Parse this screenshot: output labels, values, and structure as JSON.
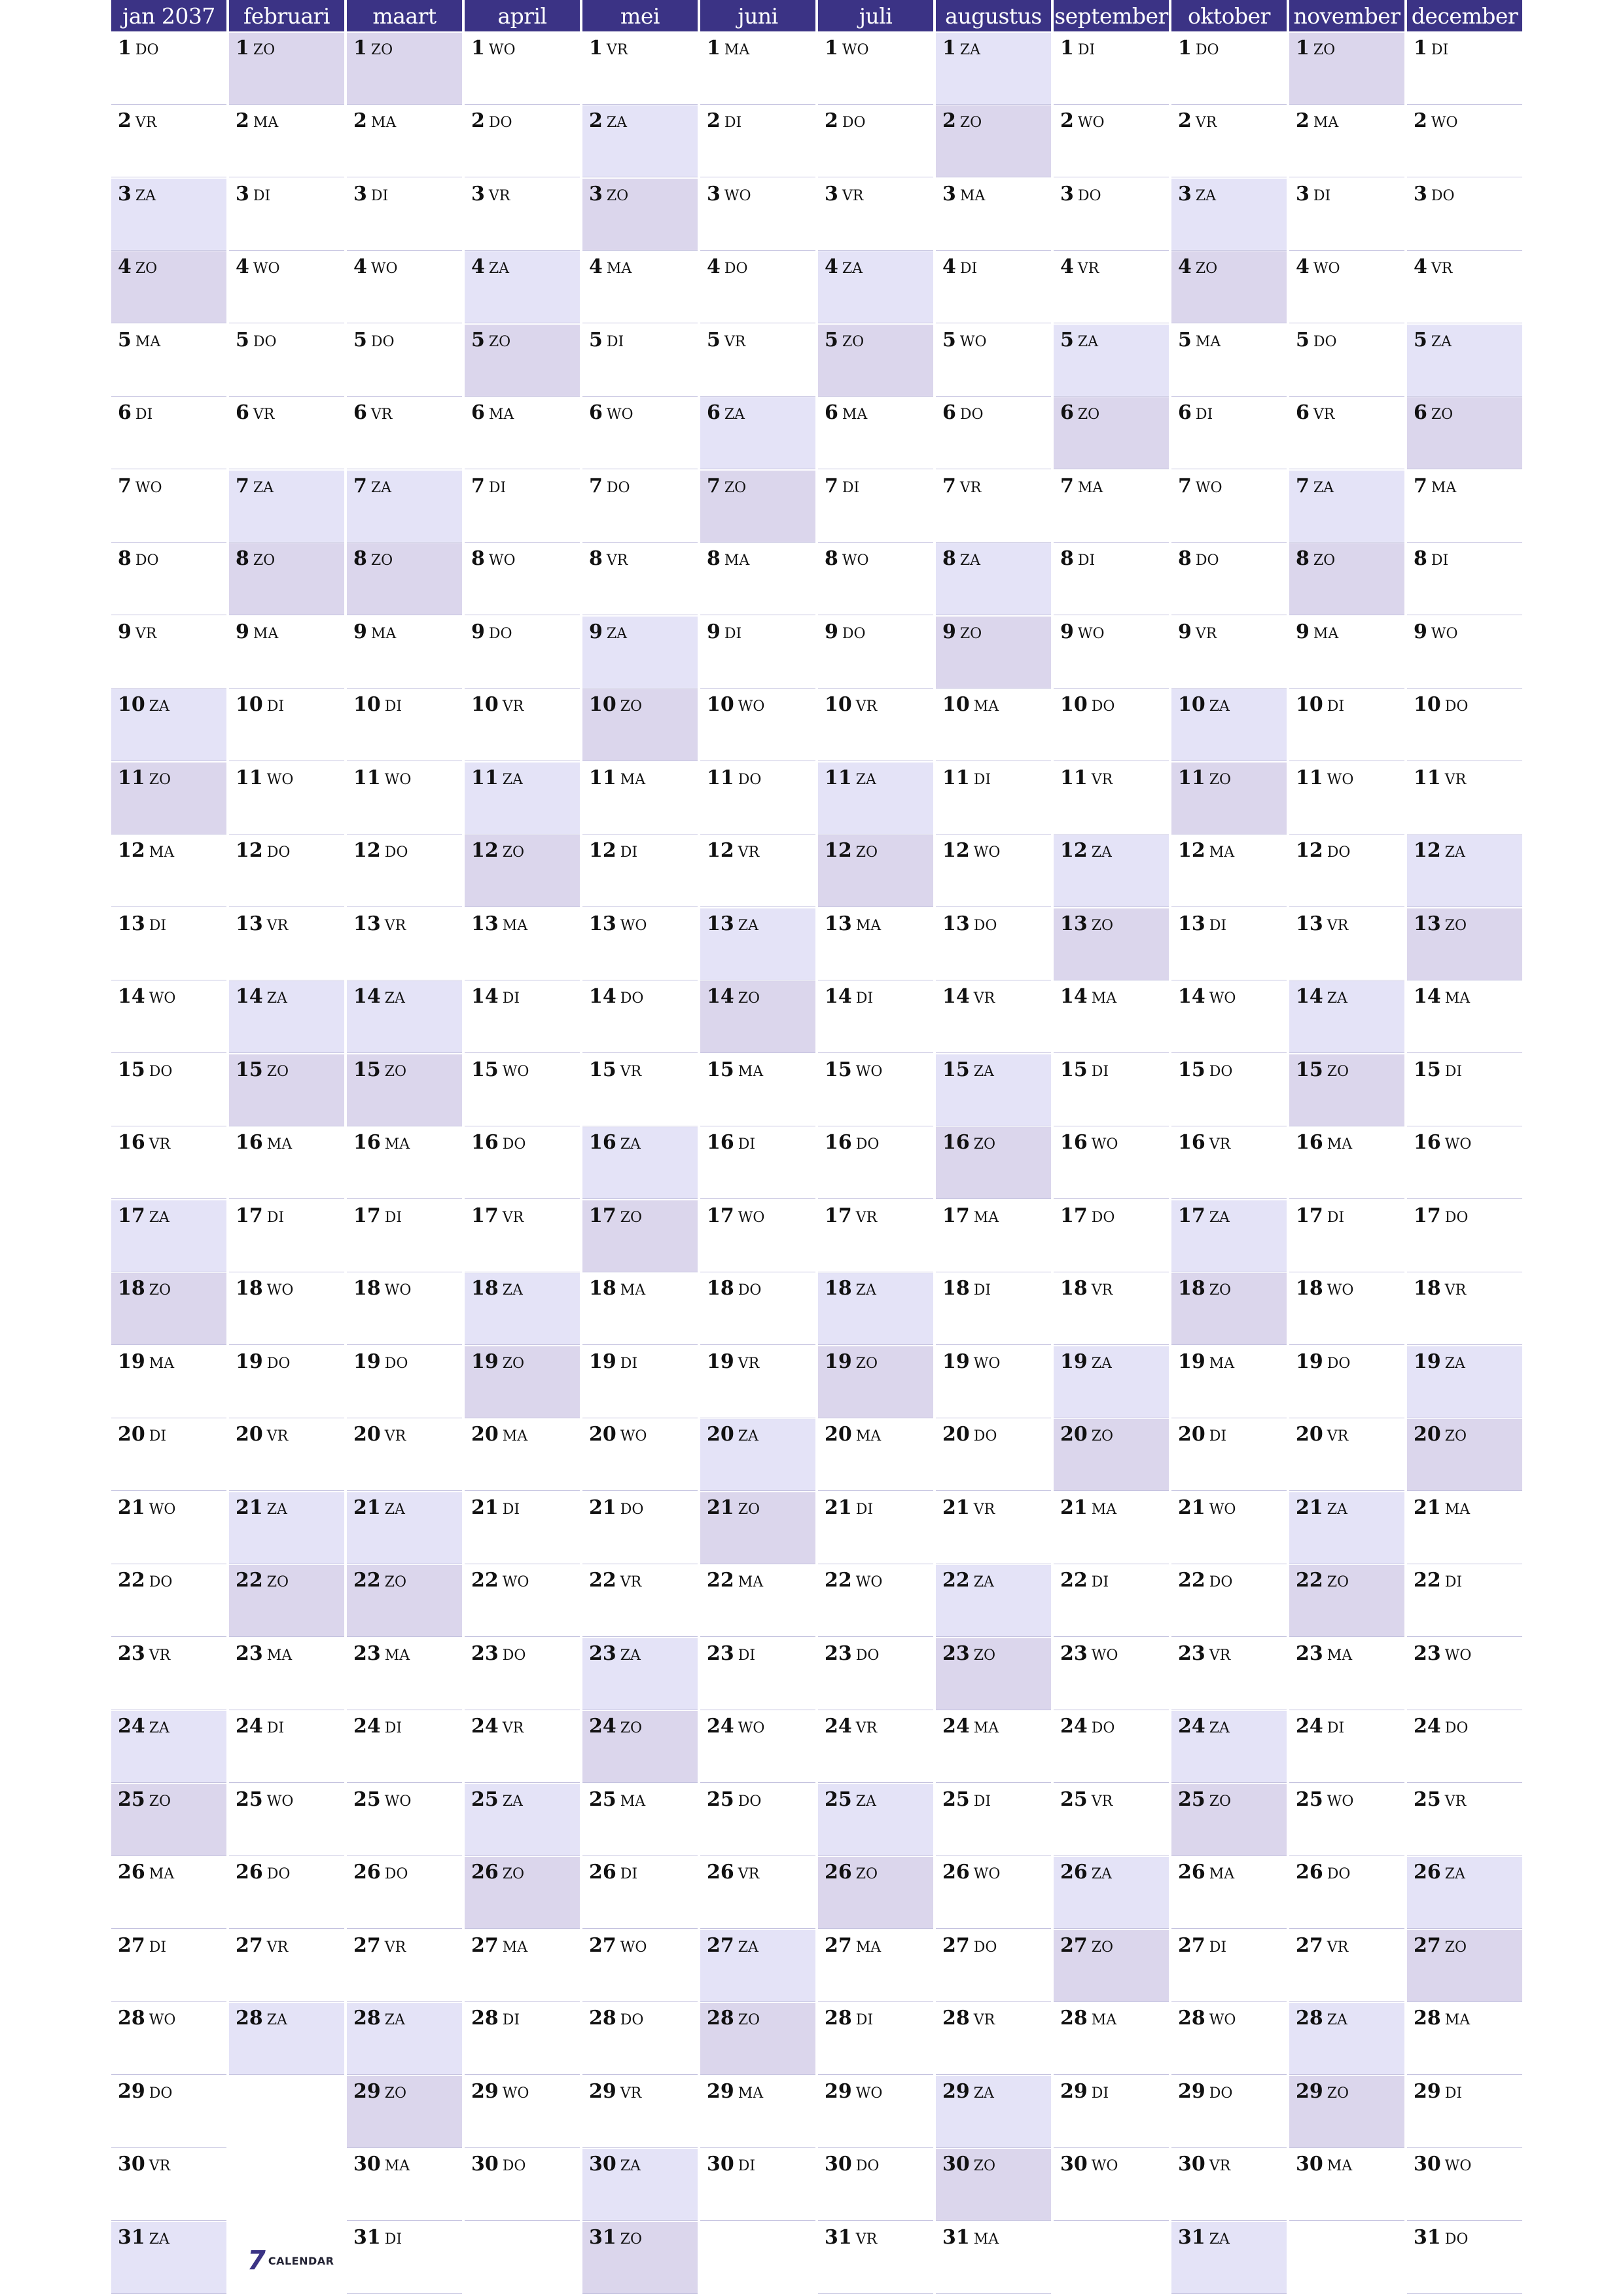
{
  "year": 2037,
  "months": [
    {
      "label": "jan 2037",
      "days": 31
    },
    {
      "label": "februari",
      "days": 28
    },
    {
      "label": "maart",
      "days": 31
    },
    {
      "label": "april",
      "days": 30
    },
    {
      "label": "mei",
      "days": 31
    },
    {
      "label": "juni",
      "days": 30
    },
    {
      "label": "juli",
      "days": 31
    },
    {
      "label": "augustus",
      "days": 31
    },
    {
      "label": "september",
      "days": 30
    },
    {
      "label": "oktober",
      "days": 31
    },
    {
      "label": "november",
      "days": 30
    },
    {
      "label": "december",
      "days": 31
    }
  ],
  "first_weekday_index": [
    3,
    6,
    6,
    2,
    4,
    0,
    2,
    5,
    1,
    3,
    6,
    1
  ],
  "weekday_abbr": [
    "MA",
    "DI",
    "WO",
    "DO",
    "VR",
    "ZA",
    "ZO"
  ],
  "colors": {
    "header_bg": "#3b3385",
    "header_text": "#ffffff",
    "saturday_bg": "#e4e3f7",
    "sunday_bg": "#dbd6ec",
    "row_line": "#c4c2df"
  },
  "logo": {
    "mark": "7",
    "text": "CALENDAR"
  }
}
